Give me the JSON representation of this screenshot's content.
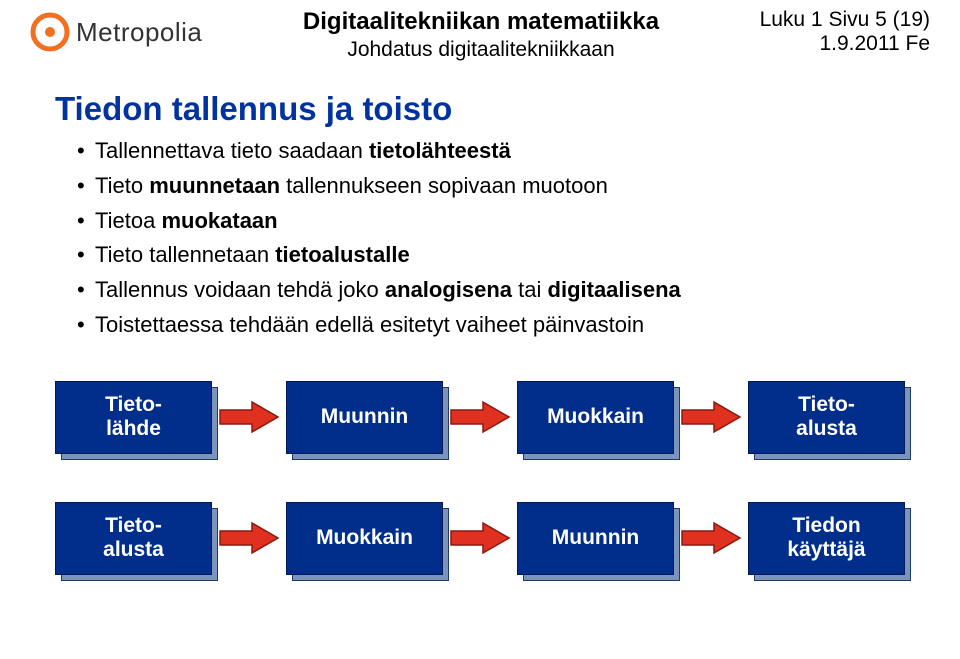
{
  "logo_text": "Metropolia",
  "header": {
    "title": "Digitaalitekniikan matematiikka",
    "subtitle": "Johdatus digitaalitekniikkaan",
    "right_line1": "Luku 1  Sivu 5 (19)",
    "right_line2": "1.9.2011 Fe"
  },
  "page_title": "Tiedon tallennus ja toisto",
  "bullets": [
    {
      "pre": "Tallennettava tieto saadaan ",
      "bold": "tietolähteestä",
      "post": ""
    },
    {
      "pre": "Tieto ",
      "bold": "muunnetaan",
      "post": " tallennukseen sopivaan muotoon"
    },
    {
      "pre": "Tietoa ",
      "bold": "muokataan",
      "post": ""
    },
    {
      "pre": "Tieto tallennetaan ",
      "bold": "tietoalustalle",
      "post": ""
    },
    {
      "pre": "Tallennus voidaan tehdä joko ",
      "bold": "analogisena",
      "post": " tai ",
      "bold2": "digitaalisena"
    },
    {
      "pre": "Toistettaessa tehdään edellä esitetyt vaiheet päinvastoin",
      "bold": "",
      "post": ""
    }
  ],
  "flows": {
    "row1": [
      "Tieto-\nlähde",
      "Muunnin",
      "Muokkain",
      "Tieto-\nalusta"
    ],
    "row2": [
      "Tieto-\nalusta",
      "Muokkain",
      "Muunnin",
      "Tiedon\nkäyttäjä"
    ]
  },
  "colors": {
    "title_color": "#0033a0",
    "box_front": "#002e8a",
    "box_back": "#7a94be",
    "arrow_fill": "#e03020",
    "arrow_border": "#8a1a10",
    "logo_orange": "#f37021"
  }
}
